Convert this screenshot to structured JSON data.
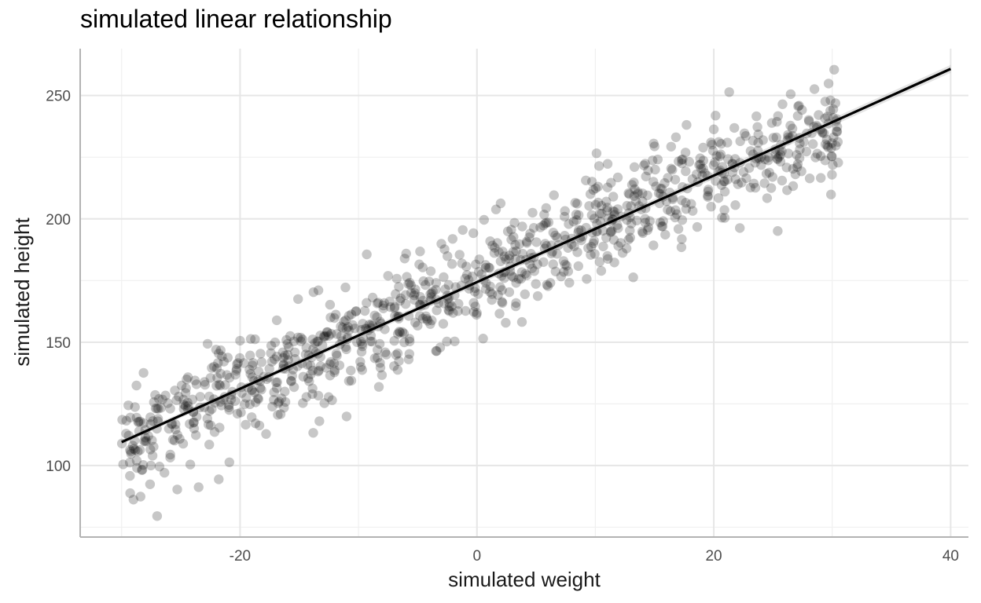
{
  "chart_data": {
    "type": "scatter",
    "title": "simulated linear relationship",
    "xlabel": "simulated weight",
    "ylabel": "simulated height",
    "xlim": [
      -33.5,
      41.5
    ],
    "ylim": [
      71,
      269
    ],
    "x_ticks": [
      -20,
      0,
      20,
      40
    ],
    "x_tick_labels": [
      "-20",
      "0",
      "20",
      "40"
    ],
    "y_ticks": [
      100,
      150,
      200,
      250
    ],
    "y_tick_labels": [
      "100",
      "150",
      "200",
      "250"
    ],
    "grid": true,
    "legend": "none",
    "point_color": "#000000",
    "point_alpha": 0.22,
    "n_points": 1000,
    "fit_line": {
      "x": [
        -30,
        40
      ],
      "y": [
        109.5,
        260.8
      ],
      "color": "#000000"
    },
    "trend": {
      "slope": 2.16,
      "intercept": 174.3,
      "noise_sd": 9.5,
      "x_range": [
        -30,
        30.5
      ]
    },
    "points": [
      [
        -29.6,
        118.2
      ],
      [
        -29.3,
        95.8
      ],
      [
        -29.0,
        86.2
      ],
      [
        -28.7,
        99.0
      ],
      [
        -28.4,
        87.4
      ],
      [
        -28.0,
        111.3
      ],
      [
        -27.6,
        92.4
      ],
      [
        -27.3,
        107.6
      ],
      [
        -27.0,
        79.5
      ],
      [
        -26.8,
        99.6
      ],
      [
        -26.3,
        128.4
      ],
      [
        -25.9,
        103.2
      ],
      [
        -25.3,
        90.3
      ],
      [
        -25.1,
        110.8
      ],
      [
        -24.6,
        124.1
      ],
      [
        -24.2,
        100.4
      ],
      [
        -23.9,
        117.6
      ],
      [
        -23.5,
        91.2
      ],
      [
        -23.0,
        133.9
      ],
      [
        -22.6,
        108.5
      ],
      [
        -22.2,
        140.1
      ],
      [
        -21.8,
        94.4
      ],
      [
        -21.4,
        126.7
      ],
      [
        -20.9,
        101.3
      ],
      [
        -20.4,
        136.8
      ],
      [
        -20.0,
        150.6
      ],
      [
        -19.6,
        124.9
      ],
      [
        -19.1,
        151.3
      ],
      [
        -18.7,
        117.1
      ],
      [
        -18.3,
        134.2
      ],
      [
        -17.8,
        112.8
      ],
      [
        -17.4,
        145.6
      ],
      [
        -16.9,
        158.9
      ],
      [
        -16.5,
        127.2
      ],
      [
        -16.0,
        149.3
      ],
      [
        -15.6,
        136.4
      ],
      [
        -15.1,
        167.5
      ],
      [
        -14.7,
        125.3
      ],
      [
        -14.2,
        144.7
      ],
      [
        -13.8,
        170.3
      ],
      [
        -13.3,
        118.0
      ],
      [
        -12.9,
        152.1
      ],
      [
        -12.4,
        165.2
      ],
      [
        -12.0,
        138.6
      ],
      [
        -11.5,
        156.4
      ],
      [
        -11.1,
        172.2
      ],
      [
        -10.6,
        134.4
      ],
      [
        -10.2,
        162.6
      ],
      [
        -9.7,
        149.2
      ],
      [
        -9.3,
        185.6
      ],
      [
        -8.8,
        168.1
      ],
      [
        -8.4,
        143.7
      ],
      [
        -7.9,
        163.7
      ],
      [
        -7.5,
        176.9
      ],
      [
        -7.0,
        140.3
      ],
      [
        -6.6,
        159.6
      ],
      [
        -6.1,
        183.9
      ],
      [
        -5.7,
        151.4
      ],
      [
        -5.2,
        171.4
      ],
      [
        -4.8,
        186.8
      ],
      [
        -4.3,
        160.5
      ],
      [
        -3.9,
        178.8
      ],
      [
        -3.4,
        146.4
      ],
      [
        -3.0,
        189.9
      ],
      [
        -2.5,
        168.9
      ],
      [
        -2.1,
        181.7
      ],
      [
        -1.6,
        162.6
      ],
      [
        -1.2,
        195.5
      ],
      [
        -0.7,
        175.3
      ],
      [
        -0.3,
        194.2
      ],
      [
        0.2,
        183.6
      ],
      [
        0.6,
        199.6
      ],
      [
        1.1,
        170.4
      ],
      [
        1.5,
        188.3
      ],
      [
        2.0,
        206.3
      ],
      [
        2.4,
        178.5
      ],
      [
        2.9,
        195.6
      ],
      [
        3.3,
        165.9
      ],
      [
        3.8,
        158.2
      ],
      [
        4.2,
        190.8
      ],
      [
        4.7,
        202.5
      ],
      [
        5.1,
        181.6
      ],
      [
        5.6,
        197.3
      ],
      [
        6.0,
        172.7
      ],
      [
        6.5,
        209.6
      ],
      [
        6.9,
        189.4
      ],
      [
        7.4,
        200.9
      ],
      [
        7.8,
        174.1
      ],
      [
        8.3,
        206.5
      ],
      [
        8.7,
        192.3
      ],
      [
        9.2,
        215.6
      ],
      [
        9.6,
        185.4
      ],
      [
        10.1,
        226.6
      ],
      [
        10.5,
        178.9
      ],
      [
        11.0,
        204.6
      ],
      [
        11.4,
        195.1
      ],
      [
        11.9,
        216.8
      ],
      [
        12.3,
        186.2
      ],
      [
        12.8,
        210.4
      ],
      [
        13.2,
        176.3
      ],
      [
        13.7,
        205.2
      ],
      [
        14.1,
        221.7
      ],
      [
        14.6,
        199.1
      ],
      [
        15.0,
        229.4
      ],
      [
        15.5,
        212.3
      ],
      [
        15.9,
        193.6
      ],
      [
        16.4,
        220.4
      ],
      [
        16.8,
        233.1
      ],
      [
        17.3,
        207.5
      ],
      [
        17.7,
        238.1
      ],
      [
        18.2,
        216.1
      ],
      [
        18.6,
        196.7
      ],
      [
        19.1,
        228.9
      ],
      [
        19.5,
        208.9
      ],
      [
        20.0,
        236.3
      ],
      [
        20.4,
        219.2
      ],
      [
        20.9,
        203.6
      ],
      [
        21.3,
        251.4
      ],
      [
        21.8,
        224.3
      ],
      [
        22.2,
        196.3
      ],
      [
        22.7,
        233.6
      ],
      [
        23.1,
        212.7
      ],
      [
        23.6,
        241.6
      ],
      [
        24.0,
        221.8
      ],
      [
        24.5,
        208.4
      ],
      [
        24.9,
        238.9
      ],
      [
        25.4,
        195.1
      ],
      [
        25.8,
        246.5
      ],
      [
        26.3,
        226.5
      ],
      [
        26.7,
        213.3
      ],
      [
        27.2,
        245.9
      ],
      [
        27.6,
        231.2
      ],
      [
        28.1,
        216.4
      ],
      [
        28.5,
        252.6
      ],
      [
        29.0,
        236.2
      ],
      [
        29.4,
        223.7
      ],
      [
        29.9,
        209.9
      ],
      [
        30.3,
        229.7
      ],
      [
        30.5,
        222.8
      ]
    ]
  }
}
